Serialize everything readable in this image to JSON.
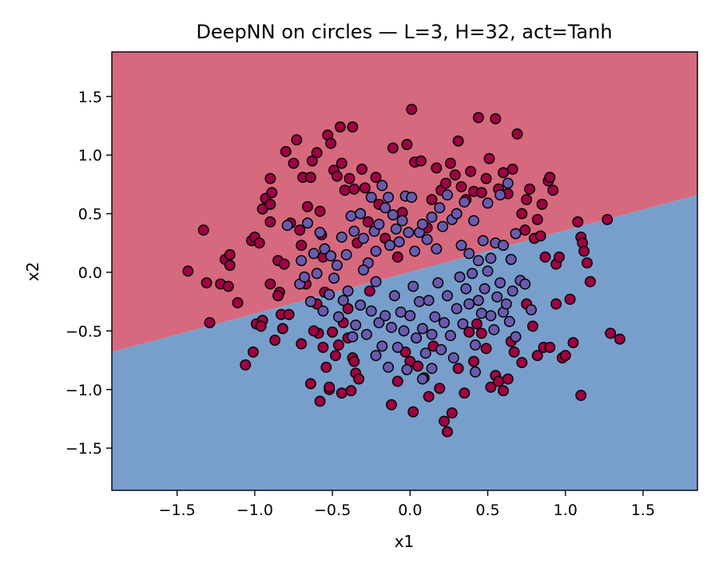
{
  "chart_data": {
    "type": "scatter",
    "title": "DeepNN on circles — L=3, H=32, act=Tanh",
    "xlabel": "x1",
    "ylabel": "x2",
    "xlim": [
      -1.92,
      1.85
    ],
    "ylim": [
      -1.86,
      1.88
    ],
    "xticks": [
      -1.5,
      -1.0,
      -0.5,
      0.0,
      0.5,
      1.0,
      1.5
    ],
    "xtick_labels": [
      "−1.5",
      "−1.0",
      "−0.5",
      "0.0",
      "0.5",
      "1.0",
      "1.5"
    ],
    "yticks": [
      -1.5,
      -1.0,
      -0.5,
      0.0,
      0.5,
      1.0,
      1.5
    ],
    "ytick_labels": [
      "−1.5",
      "−1.0",
      "−0.5",
      "0.0",
      "0.5",
      "1.0",
      "1.5"
    ],
    "grid": false,
    "decision_boundary": {
      "points": [
        [
          -1.92,
          -0.68
        ],
        [
          1.85,
          0.66
        ]
      ],
      "upper_region_color": "#d6697d",
      "lower_region_color": "#789fcb"
    },
    "series": [
      {
        "color": "#9e0142",
        "points": [
          [
            -1.43,
            0.01
          ],
          [
            -1.33,
            0.36
          ],
          [
            -1.31,
            -0.09
          ],
          [
            -1.29,
            -0.43
          ],
          [
            -1.22,
            -0.1
          ],
          [
            -1.19,
            0.11
          ],
          [
            -1.16,
            0.06
          ],
          [
            -1.16,
            0.15
          ],
          [
            -1.17,
            -0.12
          ],
          [
            -1.11,
            -0.26
          ],
          [
            -1.06,
            -0.79
          ],
          [
            -1.02,
            0.27
          ],
          [
            -1.0,
            0.3
          ],
          [
            -1.01,
            -0.68
          ],
          [
            -0.99,
            -0.44
          ],
          [
            -0.97,
            0.25
          ],
          [
            -0.95,
            -0.41
          ],
          [
            -0.95,
            0.54
          ],
          [
            -0.93,
            0.63
          ],
          [
            -0.9,
            0.43
          ],
          [
            -0.9,
            0.58
          ],
          [
            -0.9,
            0.8
          ],
          [
            -0.89,
            0.68
          ],
          [
            -0.87,
            -0.58
          ],
          [
            -0.85,
            0.1
          ],
          [
            -0.84,
            -0.17
          ],
          [
            -0.83,
            -0.36
          ],
          [
            -0.82,
            -0.48
          ],
          [
            -0.81,
            0.07
          ],
          [
            -0.8,
            1.03
          ],
          [
            -0.77,
            0.42
          ],
          [
            -0.75,
            0.93
          ],
          [
            -0.73,
            1.13
          ],
          [
            -0.71,
            0.36
          ],
          [
            -0.7,
            0.23
          ],
          [
            -0.69,
            0.81
          ],
          [
            -0.67,
            -0.1
          ],
          [
            -0.66,
            0.56
          ],
          [
            -0.64,
            0.81
          ],
          [
            -0.63,
            0.95
          ],
          [
            -0.6,
            1.02
          ],
          [
            -0.59,
            -0.52
          ],
          [
            -0.58,
            0.52
          ],
          [
            -0.57,
            0.32
          ],
          [
            -0.56,
            0.13
          ],
          [
            -0.55,
            -0.17
          ],
          [
            -0.53,
            1.17
          ],
          [
            -0.51,
            1.1
          ],
          [
            -0.49,
            0.87
          ],
          [
            -0.47,
            0.82
          ],
          [
            -0.45,
            1.24
          ],
          [
            -0.44,
            0.93
          ],
          [
            -0.42,
            0.7
          ],
          [
            -0.4,
            -0.31
          ],
          [
            -0.39,
            0.8
          ],
          [
            -0.37,
            1.24
          ],
          [
            -0.36,
            0.71
          ],
          [
            -0.34,
            0.25
          ],
          [
            -0.31,
            0.88
          ],
          [
            -0.29,
            0.72
          ],
          [
            -0.27,
            0.43
          ],
          [
            -0.26,
            -0.16
          ],
          [
            -0.22,
            0.81
          ],
          [
            -0.2,
            0.58
          ],
          [
            -0.16,
            0.29
          ],
          [
            -0.11,
            1.06
          ],
          [
            -0.08,
            0.13
          ],
          [
            -0.05,
            0.51
          ],
          [
            -0.02,
            1.09
          ],
          [
            0.01,
            1.39
          ],
          [
            0.03,
            0.94
          ],
          [
            0.07,
            0.95
          ],
          [
            0.11,
            0.38
          ],
          [
            0.14,
            0.62
          ],
          [
            0.17,
            0.89
          ],
          [
            0.2,
            0.7
          ],
          [
            0.23,
            0.76
          ],
          [
            0.26,
            0.93
          ],
          [
            0.29,
            0.83
          ],
          [
            0.31,
            1.12
          ],
          [
            0.33,
            0.73
          ],
          [
            0.36,
            0.62
          ],
          [
            0.39,
            0.86
          ],
          [
            0.41,
            0.69
          ],
          [
            0.44,
            1.32
          ],
          [
            0.46,
            0.68
          ],
          [
            0.49,
            0.8
          ],
          [
            0.51,
            0.97
          ],
          [
            0.55,
            1.31
          ],
          [
            0.57,
            0.71
          ],
          [
            0.6,
            0.85
          ],
          [
            0.63,
            0.67
          ],
          [
            0.66,
            0.88
          ],
          [
            0.69,
            1.18
          ],
          [
            0.72,
            0.5
          ],
          [
            0.74,
            0.36
          ],
          [
            0.75,
            0.62
          ],
          [
            0.77,
            0.71
          ],
          [
            0.8,
            0.29
          ],
          [
            0.82,
            0.45
          ],
          [
            0.84,
            0.31
          ],
          [
            0.85,
            0.58
          ],
          [
            0.87,
            0.13
          ],
          [
            0.89,
            0.78
          ],
          [
            0.9,
            0.81
          ],
          [
            0.92,
            0.7
          ],
          [
            0.94,
            0.07
          ],
          [
            0.96,
            0.13
          ],
          [
            1.08,
            0.43
          ],
          [
            1.1,
            0.3
          ],
          [
            1.11,
            0.25
          ],
          [
            1.12,
            0.18
          ],
          [
            1.14,
            0.08
          ],
          [
            1.16,
            -0.08
          ],
          [
            1.27,
            0.45
          ],
          [
            -0.96,
            -0.46
          ],
          [
            -0.9,
            -0.1
          ],
          [
            -0.85,
            -0.2
          ],
          [
            -0.78,
            -0.36
          ],
          [
            -0.7,
            -0.61
          ],
          [
            -0.64,
            -0.95
          ],
          [
            -0.62,
            -0.5
          ],
          [
            -0.6,
            -0.27
          ],
          [
            -0.56,
            -0.64
          ],
          [
            -0.54,
            -0.81
          ],
          [
            -0.52,
            -1.0
          ],
          [
            -0.5,
            -0.51
          ],
          [
            -0.48,
            -0.71
          ],
          [
            -0.46,
            -0.62
          ],
          [
            -0.44,
            -1.03
          ],
          [
            -0.43,
            -0.43
          ],
          [
            -0.4,
            -0.56
          ],
          [
            -0.38,
            -1.01
          ],
          [
            -0.37,
            -0.73
          ],
          [
            -0.36,
            -0.76
          ],
          [
            -0.35,
            -0.86
          ],
          [
            -0.33,
            -0.91
          ],
          [
            -0.12,
            -1.13
          ],
          [
            -0.08,
            -0.93
          ],
          [
            -0.03,
            -0.68
          ],
          [
            0.0,
            -0.76
          ],
          [
            0.02,
            -1.19
          ],
          [
            0.05,
            -0.8
          ],
          [
            0.09,
            -0.9
          ],
          [
            0.12,
            -1.06
          ],
          [
            0.15,
            -0.63
          ],
          [
            0.19,
            -0.99
          ],
          [
            0.22,
            -1.27
          ],
          [
            0.24,
            -1.36
          ],
          [
            0.27,
            -1.2
          ],
          [
            0.31,
            -0.82
          ],
          [
            0.35,
            -1.03
          ],
          [
            0.38,
            -0.51
          ],
          [
            0.41,
            -0.76
          ],
          [
            0.43,
            -0.44
          ],
          [
            0.46,
            -0.52
          ],
          [
            0.49,
            -0.65
          ],
          [
            0.52,
            -0.98
          ],
          [
            0.55,
            -0.88
          ],
          [
            0.57,
            -0.93
          ],
          [
            0.6,
            -1.01
          ],
          [
            0.63,
            -0.91
          ],
          [
            0.65,
            -0.59
          ],
          [
            0.67,
            -0.68
          ],
          [
            0.72,
            -0.77
          ],
          [
            0.75,
            -0.27
          ],
          [
            0.79,
            -0.46
          ],
          [
            0.82,
            -0.71
          ],
          [
            0.86,
            -0.64
          ],
          [
            0.9,
            -0.64
          ],
          [
            0.94,
            -0.27
          ],
          [
            0.98,
            -0.73
          ],
          [
            1.0,
            -0.71
          ],
          [
            1.03,
            -0.23
          ],
          [
            1.05,
            -0.6
          ],
          [
            1.1,
            -1.05
          ],
          [
            1.29,
            -0.52
          ],
          [
            1.35,
            -0.57
          ],
          [
            -0.58,
            -1.1
          ],
          [
            -0.52,
            -0.98
          ]
        ]
      },
      {
        "color": "#6a5aad",
        "points": [
          [
            -0.79,
            0.4
          ],
          [
            -0.7,
            0.1
          ],
          [
            -0.66,
            0.42
          ],
          [
            -0.62,
            0.16
          ],
          [
            -0.58,
            0.34
          ],
          [
            -0.55,
            0.2
          ],
          [
            -0.51,
            0.14
          ],
          [
            -0.47,
            0.06
          ],
          [
            -0.44,
            0.3
          ],
          [
            -0.41,
            0.15
          ],
          [
            -0.38,
            0.48
          ],
          [
            -0.36,
            0.35
          ],
          [
            -0.32,
            0.5
          ],
          [
            -0.3,
            0.29
          ],
          [
            -0.27,
            0.08
          ],
          [
            -0.25,
            0.64
          ],
          [
            -0.23,
            0.35
          ],
          [
            -0.22,
            0.18
          ],
          [
            -0.2,
            0.41
          ],
          [
            -0.18,
            0.74
          ],
          [
            -0.16,
            0.55
          ],
          [
            -0.14,
            0.64
          ],
          [
            -0.13,
            0.23
          ],
          [
            -0.11,
            0.49
          ],
          [
            -0.09,
            0.37
          ],
          [
            -0.07,
            0.26
          ],
          [
            -0.05,
            0.44
          ],
          [
            -0.03,
            0.65
          ],
          [
            -0.01,
            0.34
          ],
          [
            0.01,
            0.64
          ],
          [
            0.03,
            0.18
          ],
          [
            0.06,
            0.34
          ],
          [
            0.08,
            0.41
          ],
          [
            0.11,
            0.28
          ],
          [
            0.14,
            0.47
          ],
          [
            0.17,
            0.2
          ],
          [
            0.19,
            0.55
          ],
          [
            0.21,
            0.39
          ],
          [
            0.24,
            0.66
          ],
          [
            0.27,
            0.45
          ],
          [
            0.3,
            0.5
          ],
          [
            0.33,
            0.23
          ],
          [
            0.35,
            0.6
          ],
          [
            0.38,
            0.16
          ],
          [
            0.41,
            0.44
          ],
          [
            0.44,
            0.1
          ],
          [
            0.47,
            0.27
          ],
          [
            0.5,
            0.59
          ],
          [
            0.52,
            0.12
          ],
          [
            0.55,
            0.25
          ],
          [
            0.58,
            0.66
          ],
          [
            0.6,
            0.23
          ],
          [
            0.63,
            0.76
          ],
          [
            0.65,
            0.11
          ],
          [
            0.68,
            0.33
          ],
          [
            0.71,
            -0.07
          ],
          [
            -0.71,
            -0.1
          ],
          [
            -0.68,
            -0.04
          ],
          [
            -0.64,
            -0.25
          ],
          [
            -0.6,
            -0.01
          ],
          [
            -0.56,
            -0.33
          ],
          [
            -0.52,
            -0.19
          ],
          [
            -0.49,
            -0.05
          ],
          [
            -0.46,
            -0.38
          ],
          [
            -0.43,
            -0.24
          ],
          [
            -0.4,
            -0.16
          ],
          [
            -0.37,
            -0.55
          ],
          [
            -0.35,
            -0.45
          ],
          [
            -0.32,
            -0.28
          ],
          [
            -0.3,
            0.02
          ],
          [
            -0.28,
            -0.53
          ],
          [
            -0.25,
            -0.33
          ],
          [
            -0.22,
            -0.08
          ],
          [
            -0.2,
            -0.43
          ],
          [
            -0.18,
            -0.63
          ],
          [
            -0.16,
            -0.37
          ],
          [
            -0.14,
            -0.81
          ],
          [
            -0.12,
            -0.47
          ],
          [
            -0.1,
            -0.2
          ],
          [
            -0.08,
            -0.64
          ],
          [
            -0.06,
            -0.34
          ],
          [
            -0.04,
            -0.5
          ],
          [
            -0.02,
            -0.83
          ],
          [
            0.0,
            -0.37
          ],
          [
            0.02,
            -0.12
          ],
          [
            0.04,
            -0.56
          ],
          [
            0.06,
            -0.25
          ],
          [
            0.08,
            -0.48
          ],
          [
            0.1,
            -0.69
          ],
          [
            0.12,
            -0.24
          ],
          [
            0.14,
            -0.53
          ],
          [
            0.16,
            -0.38
          ],
          [
            0.18,
            -0.09
          ],
          [
            0.2,
            -0.66
          ],
          [
            0.22,
            -0.43
          ],
          [
            0.24,
            -0.2
          ],
          [
            0.26,
            -0.54
          ],
          [
            0.28,
            -0.73
          ],
          [
            0.3,
            -0.31
          ],
          [
            0.32,
            -0.04
          ],
          [
            0.34,
            -0.44
          ],
          [
            0.36,
            -0.14
          ],
          [
            0.38,
            -0.27
          ],
          [
            0.4,
            -0.01
          ],
          [
            0.42,
            -0.62
          ],
          [
            0.44,
            -0.24
          ],
          [
            0.46,
            -0.35
          ],
          [
            0.48,
            -0.14
          ],
          [
            0.5,
            0.01
          ],
          [
            0.52,
            -0.37
          ],
          [
            0.54,
            -0.49
          ],
          [
            0.56,
            -0.21
          ],
          [
            0.58,
            -0.09
          ],
          [
            0.6,
            -0.34
          ],
          [
            0.62,
            -0.27
          ],
          [
            0.64,
            -0.42
          ],
          [
            0.66,
            -0.16
          ],
          [
            0.68,
            -0.55
          ],
          [
            0.74,
            -0.1
          ],
          [
            0.78,
            -0.32
          ],
          [
            -0.22,
            -0.71
          ],
          [
            0.14,
            -0.82
          ],
          [
            0.08,
            -0.91
          ],
          [
            0.42,
            -0.85
          ]
        ]
      }
    ]
  }
}
